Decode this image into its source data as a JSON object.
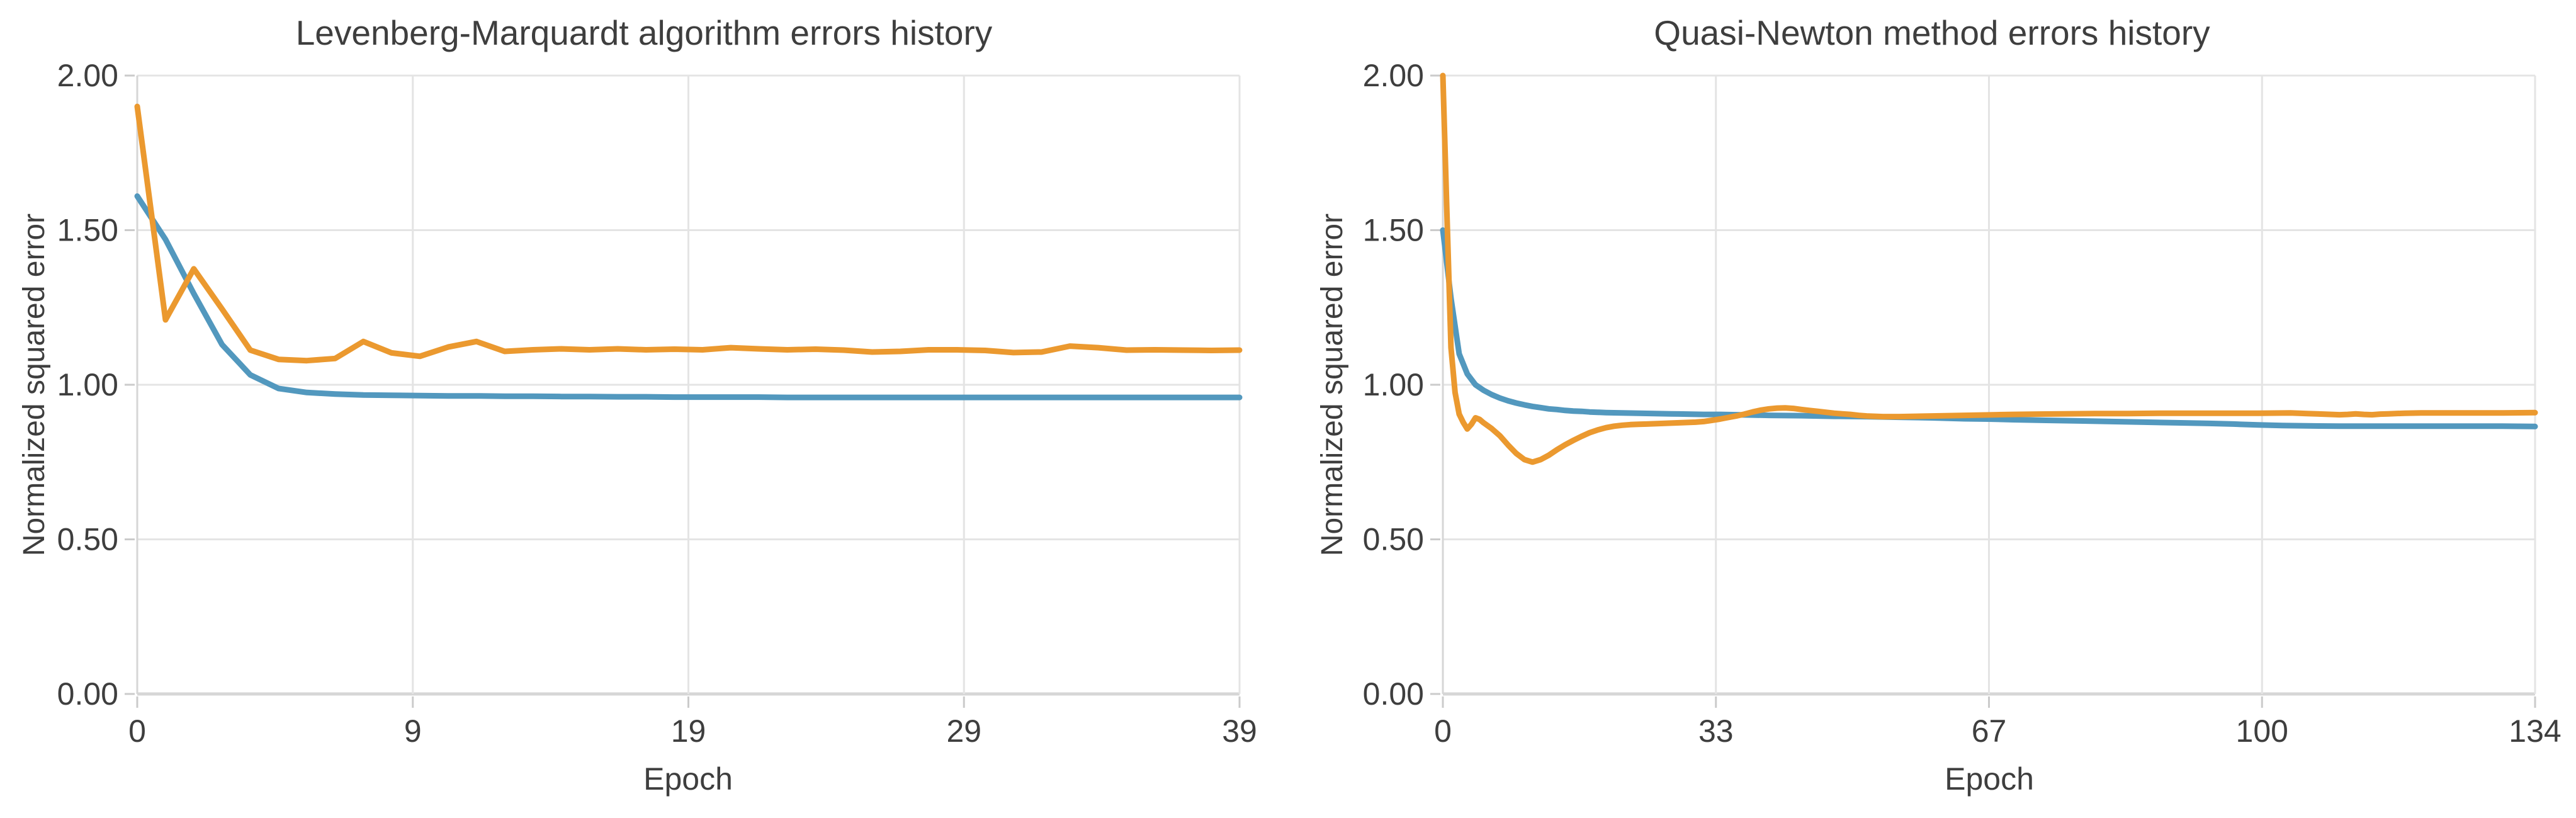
{
  "figure": {
    "background": "#FFFFFF"
  },
  "colors": {
    "grid": "#E4E4E4",
    "axis": "#D6D6D6",
    "tick_mark": "#CBCBCB",
    "text": "#3E3E3E",
    "series_blue": "#5298BE",
    "series_orange": "#EB992F"
  },
  "chart_data": [
    {
      "type": "line",
      "title": "Levenberg-Marquardt algorithm errors history",
      "xlabel": "Epoch",
      "ylabel": "Normalized squared error",
      "xlim": [
        0,
        39
      ],
      "ylim": [
        0,
        2
      ],
      "grid": true,
      "legend": "none",
      "x_ticks": {
        "fractions": [
          0,
          0.25,
          0.5,
          0.75,
          1
        ],
        "labels": [
          "0",
          "9",
          "19",
          "29",
          "39"
        ]
      },
      "y_ticks": {
        "values": [
          0,
          0.5,
          1,
          1.5,
          2
        ],
        "labels": [
          "0.00",
          "0.50",
          "1.00",
          "1.50",
          "2.00"
        ]
      },
      "series": [
        {
          "name": "blue-error-curve",
          "color": "#5298BE",
          "points": [
            [
              0,
              1.61
            ],
            [
              1,
              1.47
            ],
            [
              2,
              1.295
            ],
            [
              3,
              1.13
            ],
            [
              4,
              1.032
            ],
            [
              5,
              0.988
            ],
            [
              6,
              0.975
            ],
            [
              7,
              0.97
            ],
            [
              8,
              0.967
            ],
            [
              9,
              0.966
            ],
            [
              10,
              0.965
            ],
            [
              11,
              0.964
            ],
            [
              12,
              0.964
            ],
            [
              13,
              0.963
            ],
            [
              14,
              0.963
            ],
            [
              15,
              0.962
            ],
            [
              16,
              0.962
            ],
            [
              17,
              0.961
            ],
            [
              18,
              0.961
            ],
            [
              19,
              0.96
            ],
            [
              20,
              0.96
            ],
            [
              21,
              0.96
            ],
            [
              22,
              0.96
            ],
            [
              23,
              0.959
            ],
            [
              24,
              0.959
            ],
            [
              26,
              0.959
            ],
            [
              28,
              0.959
            ],
            [
              30,
              0.959
            ],
            [
              32,
              0.959
            ],
            [
              34,
              0.959
            ],
            [
              36,
              0.959
            ],
            [
              38,
              0.959
            ],
            [
              39,
              0.959
            ]
          ]
        },
        {
          "name": "orange-error-curve",
          "color": "#EB992F",
          "points": [
            [
              0,
              1.9
            ],
            [
              1,
              1.21
            ],
            [
              2,
              1.375
            ],
            [
              3,
              1.245
            ],
            [
              4,
              1.112
            ],
            [
              5,
              1.082
            ],
            [
              6,
              1.078
            ],
            [
              7,
              1.085
            ],
            [
              8,
              1.14
            ],
            [
              9,
              1.103
            ],
            [
              10,
              1.092
            ],
            [
              11,
              1.122
            ],
            [
              12,
              1.14
            ],
            [
              13,
              1.108
            ],
            [
              14,
              1.113
            ],
            [
              15,
              1.116
            ],
            [
              16,
              1.113
            ],
            [
              17,
              1.116
            ],
            [
              18,
              1.113
            ],
            [
              19,
              1.115
            ],
            [
              20,
              1.113
            ],
            [
              21,
              1.12
            ],
            [
              22,
              1.116
            ],
            [
              23,
              1.113
            ],
            [
              24,
              1.115
            ],
            [
              25,
              1.112
            ],
            [
              26,
              1.106
            ],
            [
              27,
              1.108
            ],
            [
              28,
              1.113
            ],
            [
              29,
              1.113
            ],
            [
              30,
              1.111
            ],
            [
              31,
              1.104
            ],
            [
              32,
              1.106
            ],
            [
              33,
              1.125
            ],
            [
              34,
              1.12
            ],
            [
              35,
              1.112
            ],
            [
              36,
              1.113
            ],
            [
              37,
              1.112
            ],
            [
              38,
              1.111
            ],
            [
              39,
              1.112
            ]
          ]
        }
      ]
    },
    {
      "type": "line",
      "title": "Quasi-Newton method errors history",
      "xlabel": "Epoch",
      "ylabel": "Normalized squared error",
      "xlim": [
        0,
        134
      ],
      "ylim": [
        0,
        2
      ],
      "grid": true,
      "legend": "none",
      "x_ticks": {
        "fractions": [
          0,
          0.25,
          0.5,
          0.75,
          1
        ],
        "labels": [
          "0",
          "33",
          "67",
          "100",
          "134"
        ]
      },
      "y_ticks": {
        "values": [
          0,
          0.5,
          1,
          1.5,
          2
        ],
        "labels": [
          "0.00",
          "0.50",
          "1.00",
          "1.50",
          "2.00"
        ]
      },
      "series": [
        {
          "name": "blue-error-curve",
          "color": "#5298BE",
          "points": [
            [
              0,
              1.5
            ],
            [
              1,
              1.28
            ],
            [
              2,
              1.1
            ],
            [
              3,
              1.035
            ],
            [
              4,
              1.0
            ],
            [
              5,
              0.982
            ],
            [
              6,
              0.968
            ],
            [
              7,
              0.957
            ],
            [
              8,
              0.948
            ],
            [
              9,
              0.941
            ],
            [
              10,
              0.935
            ],
            [
              11,
              0.93
            ],
            [
              12,
              0.926
            ],
            [
              13,
              0.922
            ],
            [
              14,
              0.92
            ],
            [
              15,
              0.917
            ],
            [
              16,
              0.915
            ],
            [
              17,
              0.914
            ],
            [
              18,
              0.912
            ],
            [
              19,
              0.911
            ],
            [
              20,
              0.91
            ],
            [
              22,
              0.909
            ],
            [
              24,
              0.908
            ],
            [
              26,
              0.907
            ],
            [
              28,
              0.906
            ],
            [
              30,
              0.905
            ],
            [
              32,
              0.904
            ],
            [
              34,
              0.904
            ],
            [
              36,
              0.903
            ],
            [
              38,
              0.902
            ],
            [
              40,
              0.901
            ],
            [
              44,
              0.9
            ],
            [
              48,
              0.898
            ],
            [
              52,
              0.897
            ],
            [
              56,
              0.895
            ],
            [
              60,
              0.893
            ],
            [
              64,
              0.89
            ],
            [
              67,
              0.889
            ],
            [
              70,
              0.887
            ],
            [
              74,
              0.885
            ],
            [
              78,
              0.883
            ],
            [
              82,
              0.881
            ],
            [
              86,
              0.879
            ],
            [
              90,
              0.877
            ],
            [
              94,
              0.875
            ],
            [
              97,
              0.873
            ],
            [
              100,
              0.87
            ],
            [
              103,
              0.868
            ],
            [
              106,
              0.867
            ],
            [
              110,
              0.866
            ],
            [
              115,
              0.866
            ],
            [
              120,
              0.866
            ],
            [
              125,
              0.866
            ],
            [
              130,
              0.866
            ],
            [
              134,
              0.865
            ]
          ]
        },
        {
          "name": "orange-error-curve",
          "color": "#EB992F",
          "points": [
            [
              0,
              2.0
            ],
            [
              0.5,
              1.55
            ],
            [
              1,
              1.12
            ],
            [
              1.5,
              0.975
            ],
            [
              2,
              0.905
            ],
            [
              2.5,
              0.878
            ],
            [
              3,
              0.857
            ],
            [
              3.5,
              0.872
            ],
            [
              4,
              0.893
            ],
            [
              4.5,
              0.888
            ],
            [
              5,
              0.877
            ],
            [
              6,
              0.858
            ],
            [
              7,
              0.835
            ],
            [
              8,
              0.805
            ],
            [
              9,
              0.778
            ],
            [
              10,
              0.758
            ],
            [
              11,
              0.75
            ],
            [
              12,
              0.758
            ],
            [
              13,
              0.772
            ],
            [
              14,
              0.79
            ],
            [
              15,
              0.806
            ],
            [
              16,
              0.82
            ],
            [
              17,
              0.833
            ],
            [
              18,
              0.845
            ],
            [
              19,
              0.854
            ],
            [
              20,
              0.861
            ],
            [
              21,
              0.866
            ],
            [
              22,
              0.869
            ],
            [
              23,
              0.871
            ],
            [
              24,
              0.872
            ],
            [
              25,
              0.873
            ],
            [
              26,
              0.874
            ],
            [
              27,
              0.875
            ],
            [
              28,
              0.876
            ],
            [
              29,
              0.877
            ],
            [
              30,
              0.878
            ],
            [
              31,
              0.879
            ],
            [
              32,
              0.881
            ],
            [
              33,
              0.885
            ],
            [
              34,
              0.889
            ],
            [
              35,
              0.894
            ],
            [
              36,
              0.899
            ],
            [
              37,
              0.905
            ],
            [
              38,
              0.912
            ],
            [
              39,
              0.918
            ],
            [
              40,
              0.922
            ],
            [
              41,
              0.9245
            ],
            [
              42,
              0.925
            ],
            [
              43,
              0.9235
            ],
            [
              44,
              0.92
            ],
            [
              45,
              0.917
            ],
            [
              46,
              0.914
            ],
            [
              47,
              0.911
            ],
            [
              48,
              0.908
            ],
            [
              49,
              0.906
            ],
            [
              50,
              0.904
            ],
            [
              51,
              0.901
            ],
            [
              52,
              0.899
            ],
            [
              53,
              0.898
            ],
            [
              54,
              0.897
            ],
            [
              56,
              0.897
            ],
            [
              58,
              0.898
            ],
            [
              60,
              0.899
            ],
            [
              62,
              0.9
            ],
            [
              64,
              0.901
            ],
            [
              66,
              0.902
            ],
            [
              68,
              0.903
            ],
            [
              70,
              0.904
            ],
            [
              73,
              0.905
            ],
            [
              76,
              0.906
            ],
            [
              80,
              0.907
            ],
            [
              84,
              0.907
            ],
            [
              88,
              0.908
            ],
            [
              92,
              0.908
            ],
            [
              96,
              0.908
            ],
            [
              100,
              0.908
            ],
            [
              104,
              0.909
            ],
            [
              106,
              0.907
            ],
            [
              108,
              0.905
            ],
            [
              110,
              0.903
            ],
            [
              111,
              0.904
            ],
            [
              112,
              0.906
            ],
            [
              113,
              0.904
            ],
            [
              114,
              0.903
            ],
            [
              115,
              0.905
            ],
            [
              116,
              0.906
            ],
            [
              118,
              0.908
            ],
            [
              120,
              0.909
            ],
            [
              123,
              0.909
            ],
            [
              126,
              0.909
            ],
            [
              130,
              0.909
            ],
            [
              134,
              0.91
            ]
          ]
        }
      ]
    }
  ]
}
